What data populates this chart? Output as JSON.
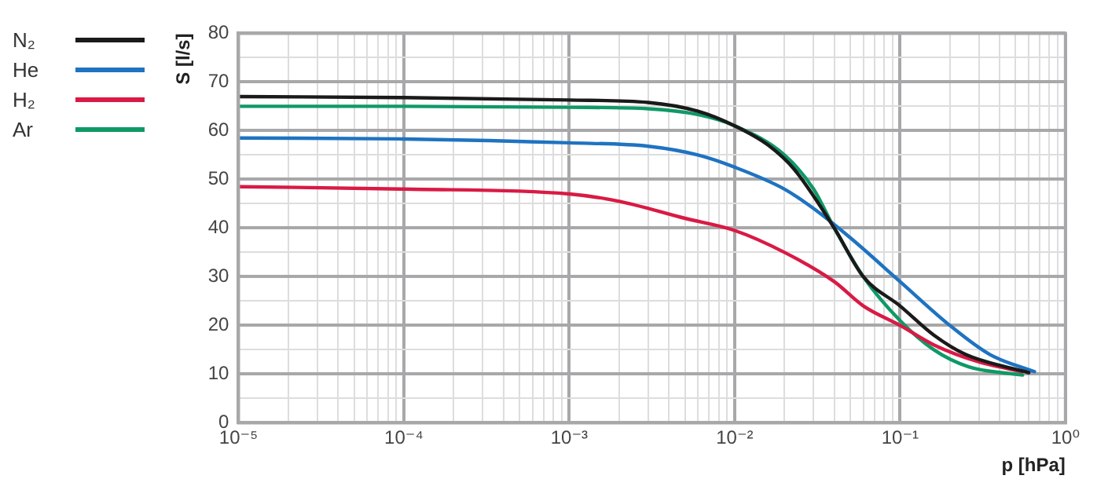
{
  "chart_data": {
    "type": "line",
    "xlabel": "p [hPa]",
    "ylabel": "S [l/s]",
    "log": "x",
    "grid": true,
    "legend": "top left",
    "marker": "none",
    "line_style": "solid",
    "xlim": [
      1e-05,
      1
    ],
    "ylim": [
      0,
      80
    ],
    "xticks": [
      {
        "value": 1e-05,
        "label": "10⁻⁵"
      },
      {
        "value": 2e-05,
        "label": null
      },
      {
        "value": 3e-05,
        "label": null
      },
      {
        "value": 4e-05,
        "label": null
      },
      {
        "value": 5e-05,
        "label": null
      },
      {
        "value": 6e-05,
        "label": null
      },
      {
        "value": 7e-05,
        "label": null
      },
      {
        "value": 8e-05,
        "label": null
      },
      {
        "value": 9e-05,
        "label": null
      },
      {
        "value": 0.0001,
        "label": "10⁻⁴"
      },
      {
        "value": 0.0002,
        "label": null
      },
      {
        "value": 0.0003,
        "label": null
      },
      {
        "value": 0.0004,
        "label": null
      },
      {
        "value": 0.0005,
        "label": null
      },
      {
        "value": 0.0006,
        "label": null
      },
      {
        "value": 0.0007,
        "label": null
      },
      {
        "value": 0.0008,
        "label": null
      },
      {
        "value": 0.0009,
        "label": null
      },
      {
        "value": 0.001,
        "label": "10⁻³"
      },
      {
        "value": 0.002,
        "label": null
      },
      {
        "value": 0.003,
        "label": null
      },
      {
        "value": 0.004,
        "label": null
      },
      {
        "value": 0.005,
        "label": null
      },
      {
        "value": 0.006,
        "label": null
      },
      {
        "value": 0.007,
        "label": null
      },
      {
        "value": 0.008,
        "label": null
      },
      {
        "value": 0.009,
        "label": null
      },
      {
        "value": 0.01,
        "label": "10⁻²"
      },
      {
        "value": 0.02,
        "label": null
      },
      {
        "value": 0.03,
        "label": null
      },
      {
        "value": 0.04,
        "label": null
      },
      {
        "value": 0.05,
        "label": null
      },
      {
        "value": 0.06,
        "label": null
      },
      {
        "value": 0.07,
        "label": null
      },
      {
        "value": 0.08,
        "label": null
      },
      {
        "value": 0.09,
        "label": null
      },
      {
        "value": 0.1,
        "label": "10⁻¹"
      },
      {
        "value": 0.2,
        "label": null
      },
      {
        "value": 0.3,
        "label": null
      },
      {
        "value": 0.4,
        "label": null
      },
      {
        "value": 0.5,
        "label": null
      },
      {
        "value": 0.6,
        "label": null
      },
      {
        "value": 0.7,
        "label": null
      },
      {
        "value": 0.8,
        "label": null
      },
      {
        "value": 0.9,
        "label": null
      },
      {
        "value": 1,
        "label": "10⁰"
      }
    ],
    "yticks": [
      0,
      {
        "value": 5,
        "label": null
      },
      10,
      {
        "value": 15,
        "label": null
      },
      20,
      {
        "value": 25,
        "label": null
      },
      30,
      {
        "value": 35,
        "label": null
      },
      40,
      {
        "value": 45,
        "label": null
      },
      50,
      {
        "value": 55,
        "label": null
      },
      60,
      {
        "value": 65,
        "label": null
      },
      70,
      {
        "value": 75,
        "label": null
      },
      80
    ],
    "series": [
      {
        "name": "N₂",
        "color": "#1a1a1a",
        "x": [
          1e-05,
          0.0001,
          0.001,
          0.003,
          0.006,
          0.01,
          0.016,
          0.023,
          0.04,
          0.06,
          0.1,
          0.16,
          0.25,
          0.6
        ],
        "values": [
          67,
          66.8,
          66.3,
          65.8,
          64,
          61,
          57,
          52,
          40,
          30,
          24,
          18,
          14,
          10.3
        ]
      },
      {
        "name": "He",
        "color": "#1f73c1",
        "x": [
          1e-05,
          0.0001,
          0.001,
          0.003,
          0.006,
          0.01,
          0.02,
          0.03,
          0.05,
          0.1,
          0.2,
          0.35,
          0.65
        ],
        "values": [
          58.5,
          58.3,
          57.5,
          56.8,
          55,
          52.5,
          48,
          44,
          38,
          29,
          20,
          14,
          10.5
        ]
      },
      {
        "name": "H₂",
        "color": "#d91a45",
        "x": [
          1e-05,
          0.0001,
          0.001,
          0.002,
          0.005,
          0.01,
          0.02,
          0.04,
          0.06,
          0.1,
          0.16,
          0.3,
          0.55
        ],
        "values": [
          48.5,
          48,
          47,
          45.5,
          42,
          39.5,
          35,
          29,
          24,
          20,
          16,
          12.5,
          10.5
        ]
      },
      {
        "name": "Ar",
        "color": "#0f9966",
        "x": [
          1e-05,
          0.0001,
          0.001,
          0.003,
          0.006,
          0.01,
          0.02,
          0.03,
          0.04,
          0.06,
          0.1,
          0.16,
          0.26,
          0.55
        ],
        "values": [
          65,
          65,
          64.8,
          64.5,
          63.3,
          61,
          55,
          48,
          40,
          30,
          21,
          15,
          11.5,
          9.8
        ]
      }
    ]
  }
}
